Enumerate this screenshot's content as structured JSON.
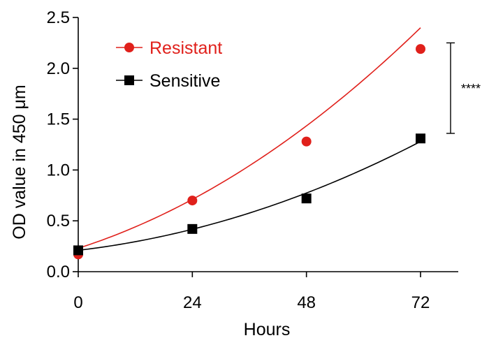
{
  "chart_data": {
    "type": "scatter",
    "title": "",
    "xlabel": "Hours",
    "ylabel": "OD value in 450 μm",
    "xlim": [
      0,
      72
    ],
    "ylim": [
      0,
      2.5
    ],
    "xticks": [
      0,
      24,
      48,
      72
    ],
    "yticks": [
      0.0,
      0.5,
      1.0,
      1.5,
      2.0,
      2.5
    ],
    "ytick_labels": [
      "0.0",
      "0.5",
      "1.0",
      "1.5",
      "2.0",
      "2.5"
    ],
    "legend_position": "top-left",
    "grid": false,
    "series": [
      {
        "name": "Resistant",
        "color": "#e0201b",
        "marker": "circle",
        "x": [
          0,
          24,
          48,
          72
        ],
        "y": [
          0.17,
          0.7,
          1.28,
          2.19
        ],
        "fit": [
          0.23,
          0.015,
          0.00021
        ]
      },
      {
        "name": "Sensitive",
        "color": "#000000",
        "marker": "square",
        "x": [
          0,
          24,
          48,
          72
        ],
        "y": [
          0.21,
          0.42,
          0.72,
          1.31
        ],
        "fit": [
          0.21,
          0.0055,
          0.00013
        ]
      }
    ],
    "annotation": {
      "text": "****",
      "bracket": [
        1.36,
        2.25
      ]
    }
  }
}
